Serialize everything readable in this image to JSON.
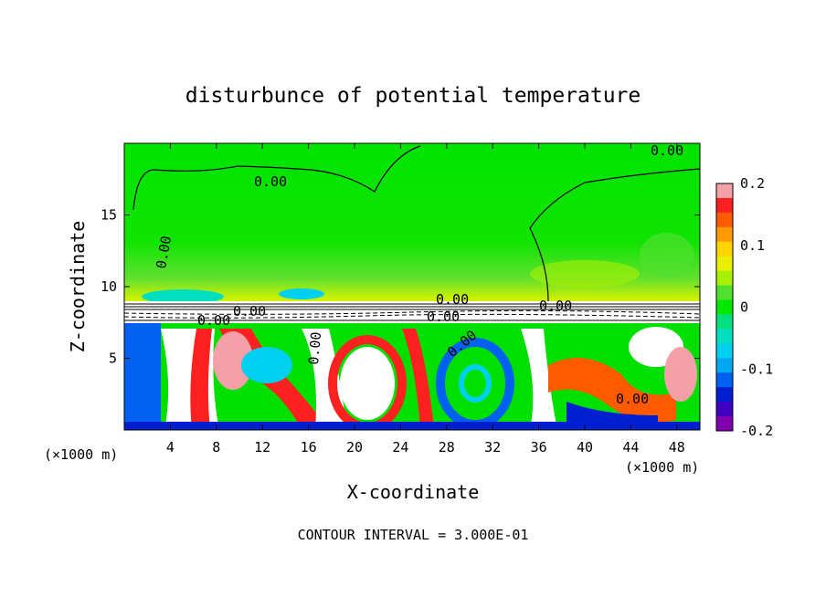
{
  "chart_data": {
    "type": "heatmap",
    "title": "disturbunce of potential temperature",
    "xlabel": "X-coordinate",
    "ylabel": "Z-coordinate",
    "x_unit": "(×1000 m)",
    "z_unit": "(×1000 m)",
    "xlim": [
      0,
      50
    ],
    "ylim": [
      0,
      20
    ],
    "x_ticks": [
      4,
      8,
      12,
      16,
      20,
      24,
      28,
      32,
      36,
      40,
      44,
      48
    ],
    "y_ticks": [
      5,
      10,
      15
    ],
    "colorbar": {
      "range": [
        -0.2,
        0.2
      ],
      "tick_labels": [
        "0.2",
        "0.1",
        "0",
        "-0.1",
        "-0.2"
      ],
      "tick_values": [
        0.2,
        0.1,
        0,
        -0.1,
        -0.2
      ],
      "colors": [
        "#f4a0a8",
        "#ff2020",
        "#ff5a00",
        "#ff9a00",
        "#ffd400",
        "#e8f000",
        "#a8f000",
        "#50e030",
        "#00e800",
        "#00e080",
        "#00e0c0",
        "#00d0f0",
        "#00a8f0",
        "#0060f0",
        "#0020d0",
        "#4000c0",
        "#8000b0"
      ]
    },
    "contour_labels": [
      "0.00",
      "0.00",
      "0.00",
      "0.00",
      "0.00",
      "0.00",
      "0.00",
      "0.00",
      "0.00",
      "0.00",
      "0.00"
    ],
    "contour_interval_text": "CONTOUR INTERVAL = 3.000E-01",
    "regions": {
      "upper_layer": "near zero (green)",
      "inversion_band_z": [
        8.0,
        9.0
      ],
      "lower_layer": "turbulent eddies, values -0.2 to 0.2"
    }
  }
}
